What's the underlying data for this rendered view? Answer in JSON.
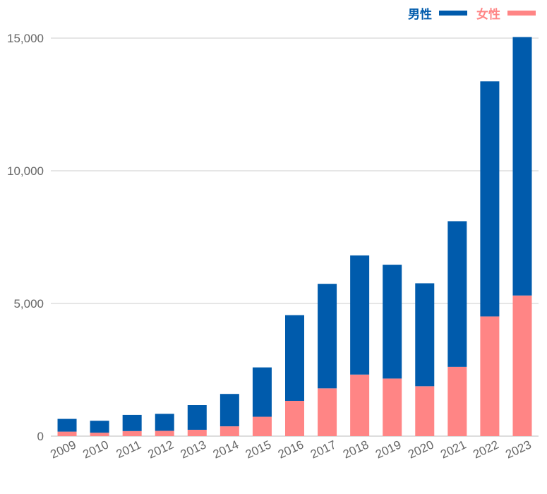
{
  "chart_data": {
    "type": "bar",
    "stacked": true,
    "categories": [
      "2009",
      "2010",
      "2011",
      "2012",
      "2013",
      "2014",
      "2015",
      "2016",
      "2017",
      "2018",
      "2019",
      "2020",
      "2021",
      "2022",
      "2023"
    ],
    "series": [
      {
        "name": "女性",
        "color": "#FF8585",
        "values": [
          170,
          130,
          190,
          200,
          240,
          370,
          730,
          1330,
          1800,
          2320,
          2170,
          1880,
          2610,
          4510,
          5300
        ]
      },
      {
        "name": "男性",
        "color": "#005BAC",
        "values": [
          480,
          450,
          610,
          640,
          930,
          1220,
          1860,
          3230,
          3940,
          4490,
          4290,
          3880,
          5490,
          8860,
          9740
        ]
      }
    ],
    "yticks": [
      "0",
      "5,000",
      "10,000",
      "15,000"
    ],
    "ytick_values": [
      0,
      5000,
      10000,
      15000
    ],
    "ylim": [
      0,
      15000
    ],
    "grid": true,
    "legend_position": "top-right",
    "title": "",
    "xlabel": "",
    "ylabel": ""
  }
}
